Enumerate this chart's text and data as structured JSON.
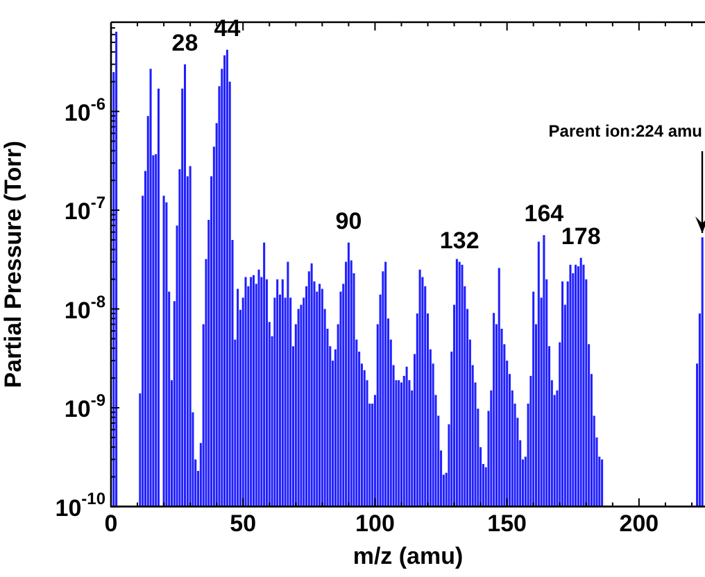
{
  "chart_data": {
    "type": "bar",
    "xlabel": "m/z (amu)",
    "ylabel": "Partial Pressure (Torr)",
    "color": "#1f1fff",
    "log": "y",
    "grid": false,
    "legend": false,
    "x": [
      1,
      2,
      11,
      12,
      13,
      14,
      15,
      16,
      17,
      18,
      20,
      21,
      22,
      23,
      24,
      25,
      26,
      27,
      28,
      29,
      30,
      31,
      32,
      33,
      34,
      35,
      36,
      37,
      38,
      39,
      40,
      41,
      42,
      43,
      44,
      45,
      46,
      47,
      48,
      49,
      50,
      51,
      52,
      53,
      54,
      55,
      56,
      57,
      58,
      59,
      60,
      61,
      62,
      63,
      64,
      65,
      66,
      67,
      68,
      69,
      70,
      71,
      72,
      73,
      74,
      75,
      76,
      77,
      78,
      79,
      80,
      81,
      82,
      83,
      84,
      85,
      86,
      87,
      88,
      89,
      90,
      91,
      92,
      93,
      94,
      95,
      96,
      97,
      98,
      99,
      100,
      101,
      102,
      103,
      104,
      105,
      106,
      107,
      108,
      109,
      110,
      111,
      112,
      113,
      114,
      115,
      116,
      117,
      118,
      119,
      120,
      121,
      122,
      123,
      124,
      125,
      126,
      127,
      128,
      129,
      130,
      131,
      132,
      133,
      134,
      135,
      136,
      137,
      138,
      139,
      140,
      141,
      142,
      143,
      144,
      145,
      146,
      147,
      148,
      149,
      150,
      151,
      152,
      153,
      154,
      155,
      156,
      157,
      158,
      159,
      160,
      161,
      162,
      163,
      164,
      165,
      166,
      167,
      168,
      169,
      170,
      171,
      172,
      173,
      174,
      175,
      176,
      177,
      178,
      179,
      180,
      181,
      182,
      183,
      184,
      185,
      186,
      222,
      223,
      224
    ],
    "values": [
      2.5e-06,
      6.4e-06,
      1.4e-09,
      1.4e-07,
      2.5e-07,
      9e-07,
      2.7e-06,
      3.6e-07,
      3.7e-07,
      1.7e-06,
      1.4e-07,
      1.2e-07,
      1.5e-08,
      1.9e-09,
      1.2e-08,
      7e-08,
      2.6e-07,
      1.7e-06,
      3e-06,
      2.2e-07,
      2.8e-07,
      9e-10,
      3e-10,
      2.3e-10,
      4.4e-10,
      7e-09,
      3.2e-08,
      8e-08,
      2.2e-07,
      4.4e-07,
      7.6e-07,
      1.8e-06,
      2.7e-06,
      3.7e-06,
      4.2e-06,
      2e-06,
      5e-08,
      4.9e-09,
      1.6e-08,
      9.8e-09,
      1.3e-08,
      2.1e-08,
      1.7e-08,
      2.1e-08,
      2.2e-08,
      1.8e-08,
      2.5e-08,
      2.1e-08,
      4.7e-08,
      2e-08,
      7.4e-09,
      5.3e-09,
      1.3e-08,
      2e-08,
      1.4e-08,
      2e-08,
      1.3e-08,
      3e-08,
      1.3e-08,
      4.2e-09,
      7e-09,
      1e-08,
      1.1e-08,
      1.3e-08,
      1.7e-08,
      2.4e-08,
      2.9e-08,
      1.9e-08,
      1.5e-08,
      1.8e-08,
      1.6e-08,
      1e-08,
      6.3e-09,
      4.2e-09,
      3e-09,
      3.9e-09,
      7e-09,
      1.5e-08,
      1.8e-08,
      3e-08,
      4.7e-08,
      3.1e-08,
      2.3e-08,
      4.9e-09,
      3.7e-09,
      2.8e-09,
      2.4e-09,
      1.9e-09,
      1.1e-09,
      1.1e-09,
      1.35e-09,
      7e-09,
      1.4e-08,
      2.4e-08,
      3e-08,
      8e-09,
      4.9e-09,
      2.7e-09,
      1.9e-09,
      1.9e-09,
      1.8e-09,
      2.1e-09,
      2.6e-09,
      1.9e-09,
      1.5e-09,
      3.5e-09,
      9e-09,
      2.5e-08,
      2.1e-08,
      1.7e-08,
      9e-09,
      3.9e-09,
      2.8e-09,
      1.35e-09,
      8.3e-10,
      3.7e-10,
      2.1e-10,
      2.2e-10,
      6.8e-10,
      3.7e-09,
      1.1e-08,
      3.2e-08,
      3e-08,
      2.8e-08,
      1.7e-08,
      1e-08,
      4.9e-09,
      2.7e-09,
      1.8e-09,
      9.8e-10,
      4e-10,
      2.7e-10,
      2.5e-10,
      9.3e-10,
      1.5e-09,
      9.1e-09,
      7e-09,
      2.6e-08,
      6.3e-09,
      4.4e-09,
      3e-09,
      2.2e-09,
      1.5e-09,
      1.1e-09,
      7.9e-10,
      4.7e-10,
      3e-10,
      3.2e-10,
      1.1e-09,
      2.1e-09,
      1.5e-08,
      7e-09,
      4.8e-08,
      1.3e-08,
      5.6e-08,
      2e-08,
      4.2e-09,
      1.9e-09,
      1.35e-09,
      1.5e-09,
      4.6e-09,
      1.9e-08,
      1.1e-08,
      1.9e-08,
      2.8e-08,
      2.3e-08,
      2.8e-08,
      2.7e-08,
      3.3e-08,
      2.8e-08,
      2e-08,
      4.4e-09,
      2.2e-09,
      8.3e-10,
      5e-10,
      3.2e-10,
      3e-10,
      2.8e-09,
      9e-09,
      5.3e-08
    ],
    "xlim": [
      0,
      225
    ],
    "xticks": [
      0,
      {
        "value": 10,
        "label": null
      },
      {
        "value": 20,
        "label": null
      },
      {
        "value": 30,
        "label": null
      },
      {
        "value": 40,
        "label": null
      },
      50,
      {
        "value": 60,
        "label": null
      },
      {
        "value": 70,
        "label": null
      },
      {
        "value": 80,
        "label": null
      },
      {
        "value": 90,
        "label": null
      },
      100,
      {
        "value": 110,
        "label": null
      },
      {
        "value": 120,
        "label": null
      },
      {
        "value": 130,
        "label": null
      },
      {
        "value": 140,
        "label": null
      },
      150,
      {
        "value": 160,
        "label": null
      },
      {
        "value": 170,
        "label": null
      },
      {
        "value": 180,
        "label": null
      },
      {
        "value": 190,
        "label": null
      },
      200,
      {
        "value": 210,
        "label": null
      },
      {
        "value": 220,
        "label": null
      }
    ],
    "ylim": [
      1e-10,
      8e-06
    ],
    "yticks": [
      {
        "value": 1e-10,
        "label": "10$^{-10}$"
      },
      {
        "value": 2e-10,
        "label": null
      },
      {
        "value": 3e-10,
        "label": null
      },
      {
        "value": 4e-10,
        "label": null
      },
      {
        "value": 5e-10,
        "label": null
      },
      {
        "value": 6e-10,
        "label": null
      },
      {
        "value": 7e-10,
        "label": null
      },
      {
        "value": 8e-10,
        "label": null
      },
      {
        "value": 9e-10,
        "label": null
      },
      {
        "value": 1e-09,
        "label": "10$^{-9}$"
      },
      {
        "value": 2e-09,
        "label": null
      },
      {
        "value": 3e-09,
        "label": null
      },
      {
        "value": 4e-09,
        "label": null
      },
      {
        "value": 5e-09,
        "label": null
      },
      {
        "value": 6e-09,
        "label": null
      },
      {
        "value": 7e-09,
        "label": null
      },
      {
        "value": 8e-09,
        "label": null
      },
      {
        "value": 9e-09,
        "label": null
      },
      {
        "value": 1e-08,
        "label": "10$^{-8}$"
      },
      {
        "value": 2e-08,
        "label": null
      },
      {
        "value": 3e-08,
        "label": null
      },
      {
        "value": 4e-08,
        "label": null
      },
      {
        "value": 5e-08,
        "label": null
      },
      {
        "value": 6e-08,
        "label": null
      },
      {
        "value": 7e-08,
        "label": null
      },
      {
        "value": 8e-08,
        "label": null
      },
      {
        "value": 9e-08,
        "label": null
      },
      {
        "value": 1e-07,
        "label": "10$^{-7}$"
      },
      {
        "value": 2e-07,
        "label": null
      },
      {
        "value": 3e-07,
        "label": null
      },
      {
        "value": 4e-07,
        "label": null
      },
      {
        "value": 5e-07,
        "label": null
      },
      {
        "value": 6e-07,
        "label": null
      },
      {
        "value": 7e-07,
        "label": null
      },
      {
        "value": 8e-07,
        "label": null
      },
      {
        "value": 9e-07,
        "label": null
      },
      {
        "value": 1e-06,
        "label": "10$^{-6}$"
      },
      {
        "value": 2e-06,
        "label": null
      },
      {
        "value": 3e-06,
        "label": null
      },
      {
        "value": 4e-06,
        "label": null
      },
      {
        "value": 5e-06,
        "label": null
      },
      {
        "value": 6e-06,
        "label": null
      },
      {
        "value": 7e-06,
        "label": null
      }
    ],
    "annotations": [
      {
        "text": "28",
        "x": 28,
        "y": 3e-06
      },
      {
        "text": "44",
        "x": 44,
        "y": 4.2e-06
      },
      {
        "text": "90",
        "x": 90,
        "y": 4.7e-08
      },
      {
        "text": "132",
        "x": 132,
        "y": 3e-08
      },
      {
        "text": "164",
        "x": 164,
        "y": 5.6e-08
      },
      {
        "text": "178",
        "x": 178,
        "y": 3.3e-08
      },
      {
        "text": "Parent ion:224 amu",
        "x": 224,
        "y": 5.3e-08
      }
    ]
  }
}
